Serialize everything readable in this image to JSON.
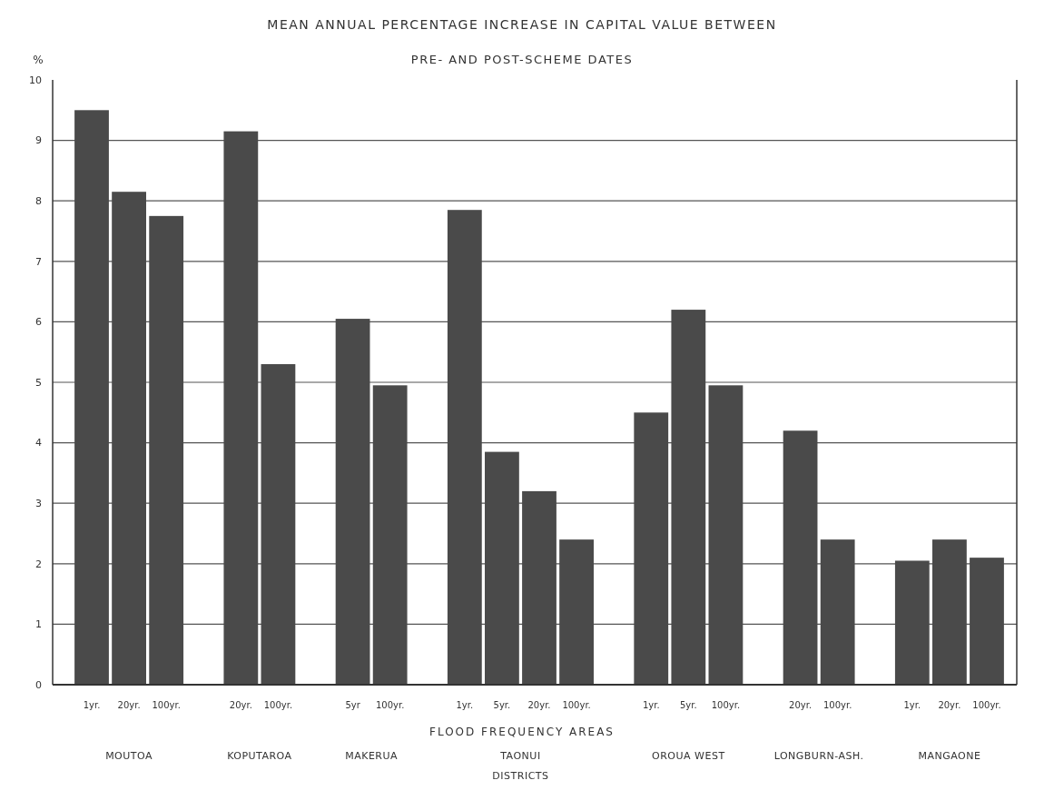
{
  "chart_data": {
    "type": "bar",
    "title": "MEAN ANNUAL PERCENTAGE INCREASE IN CAPITAL VALUE BETWEEN",
    "subtitle": "PRE- AND POST-SCHEME DATES",
    "ylabel": "%",
    "xlabel": "FLOOD FREQUENCY AREAS",
    "categories": [
      "1yr.",
      "20yr.",
      "100yr.",
      null,
      "20yr.",
      "100yr.",
      null,
      "5yr",
      "100yr.",
      null,
      "1yr.",
      "5yr.",
      "20yr.",
      "100yr.",
      null,
      "1yr.",
      "5yr.",
      "100yr.",
      null,
      "20yr.",
      "100yr.",
      null,
      "1yr.",
      "20yr.",
      "100yr."
    ],
    "values": [
      9.5,
      8.15,
      7.75,
      null,
      9.15,
      5.3,
      null,
      6.05,
      4.95,
      null,
      7.85,
      3.85,
      3.2,
      2.4,
      null,
      4.5,
      6.2,
      4.95,
      null,
      4.2,
      2.4,
      null,
      2.05,
      2.4,
      2.1
    ],
    "color": "#4a4a4a",
    "ylim": [
      0,
      10
    ],
    "yticks": [
      0,
      1,
      2,
      3,
      4,
      5,
      6,
      7,
      8,
      9,
      10
    ],
    "grid": "y",
    "annotations": [
      "MOUTOA",
      "KOPUTAROA",
      "MAKERUA",
      "TAONUI",
      "OROUA WEST",
      "LONGBURN-ASH.",
      "MANGAONE",
      "DISTRICTS"
    ]
  }
}
